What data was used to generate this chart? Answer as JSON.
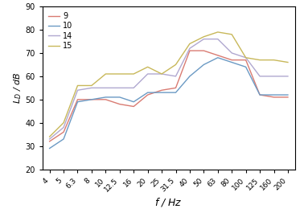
{
  "freqs": [
    4,
    5,
    6.3,
    8,
    10,
    12.5,
    16,
    20,
    25,
    31.5,
    40,
    50,
    63,
    80,
    100,
    125,
    160,
    200
  ],
  "series": {
    "9": [
      32,
      36,
      50,
      50,
      50,
      48,
      47,
      52,
      54,
      55,
      71,
      71,
      69,
      67,
      67,
      52,
      51,
      51
    ],
    "10": [
      29,
      33,
      49,
      50,
      51,
      51,
      49,
      53,
      53,
      53,
      60,
      65,
      68,
      66,
      64,
      52,
      52,
      52
    ],
    "14": [
      33,
      38,
      54,
      55,
      55,
      55,
      55,
      61,
      61,
      60,
      72,
      76,
      76,
      70,
      68,
      60,
      60,
      60
    ],
    "15": [
      34,
      40,
      56,
      56,
      61,
      61,
      61,
      64,
      61,
      65,
      74,
      77,
      79,
      78,
      68,
      67,
      67,
      66
    ]
  },
  "colors": {
    "9": "#d97b72",
    "10": "#6b9ac4",
    "14": "#b0a8d0",
    "15": "#c8b85a"
  },
  "ylabel": "$L_D$ / dB",
  "xlabel": "$f$ / Hz",
  "ylim": [
    20,
    90
  ],
  "yticks": [
    20,
    30,
    40,
    50,
    60,
    70,
    80,
    90
  ],
  "legend_labels": [
    "9",
    "10",
    "14",
    "15"
  ],
  "freq_labels": [
    "4",
    "5",
    "6.3",
    "8",
    "10",
    "12.5",
    "16",
    "20",
    "25",
    "31.5",
    "40",
    "50",
    "63",
    "80",
    "100",
    "125",
    "160",
    "200"
  ]
}
